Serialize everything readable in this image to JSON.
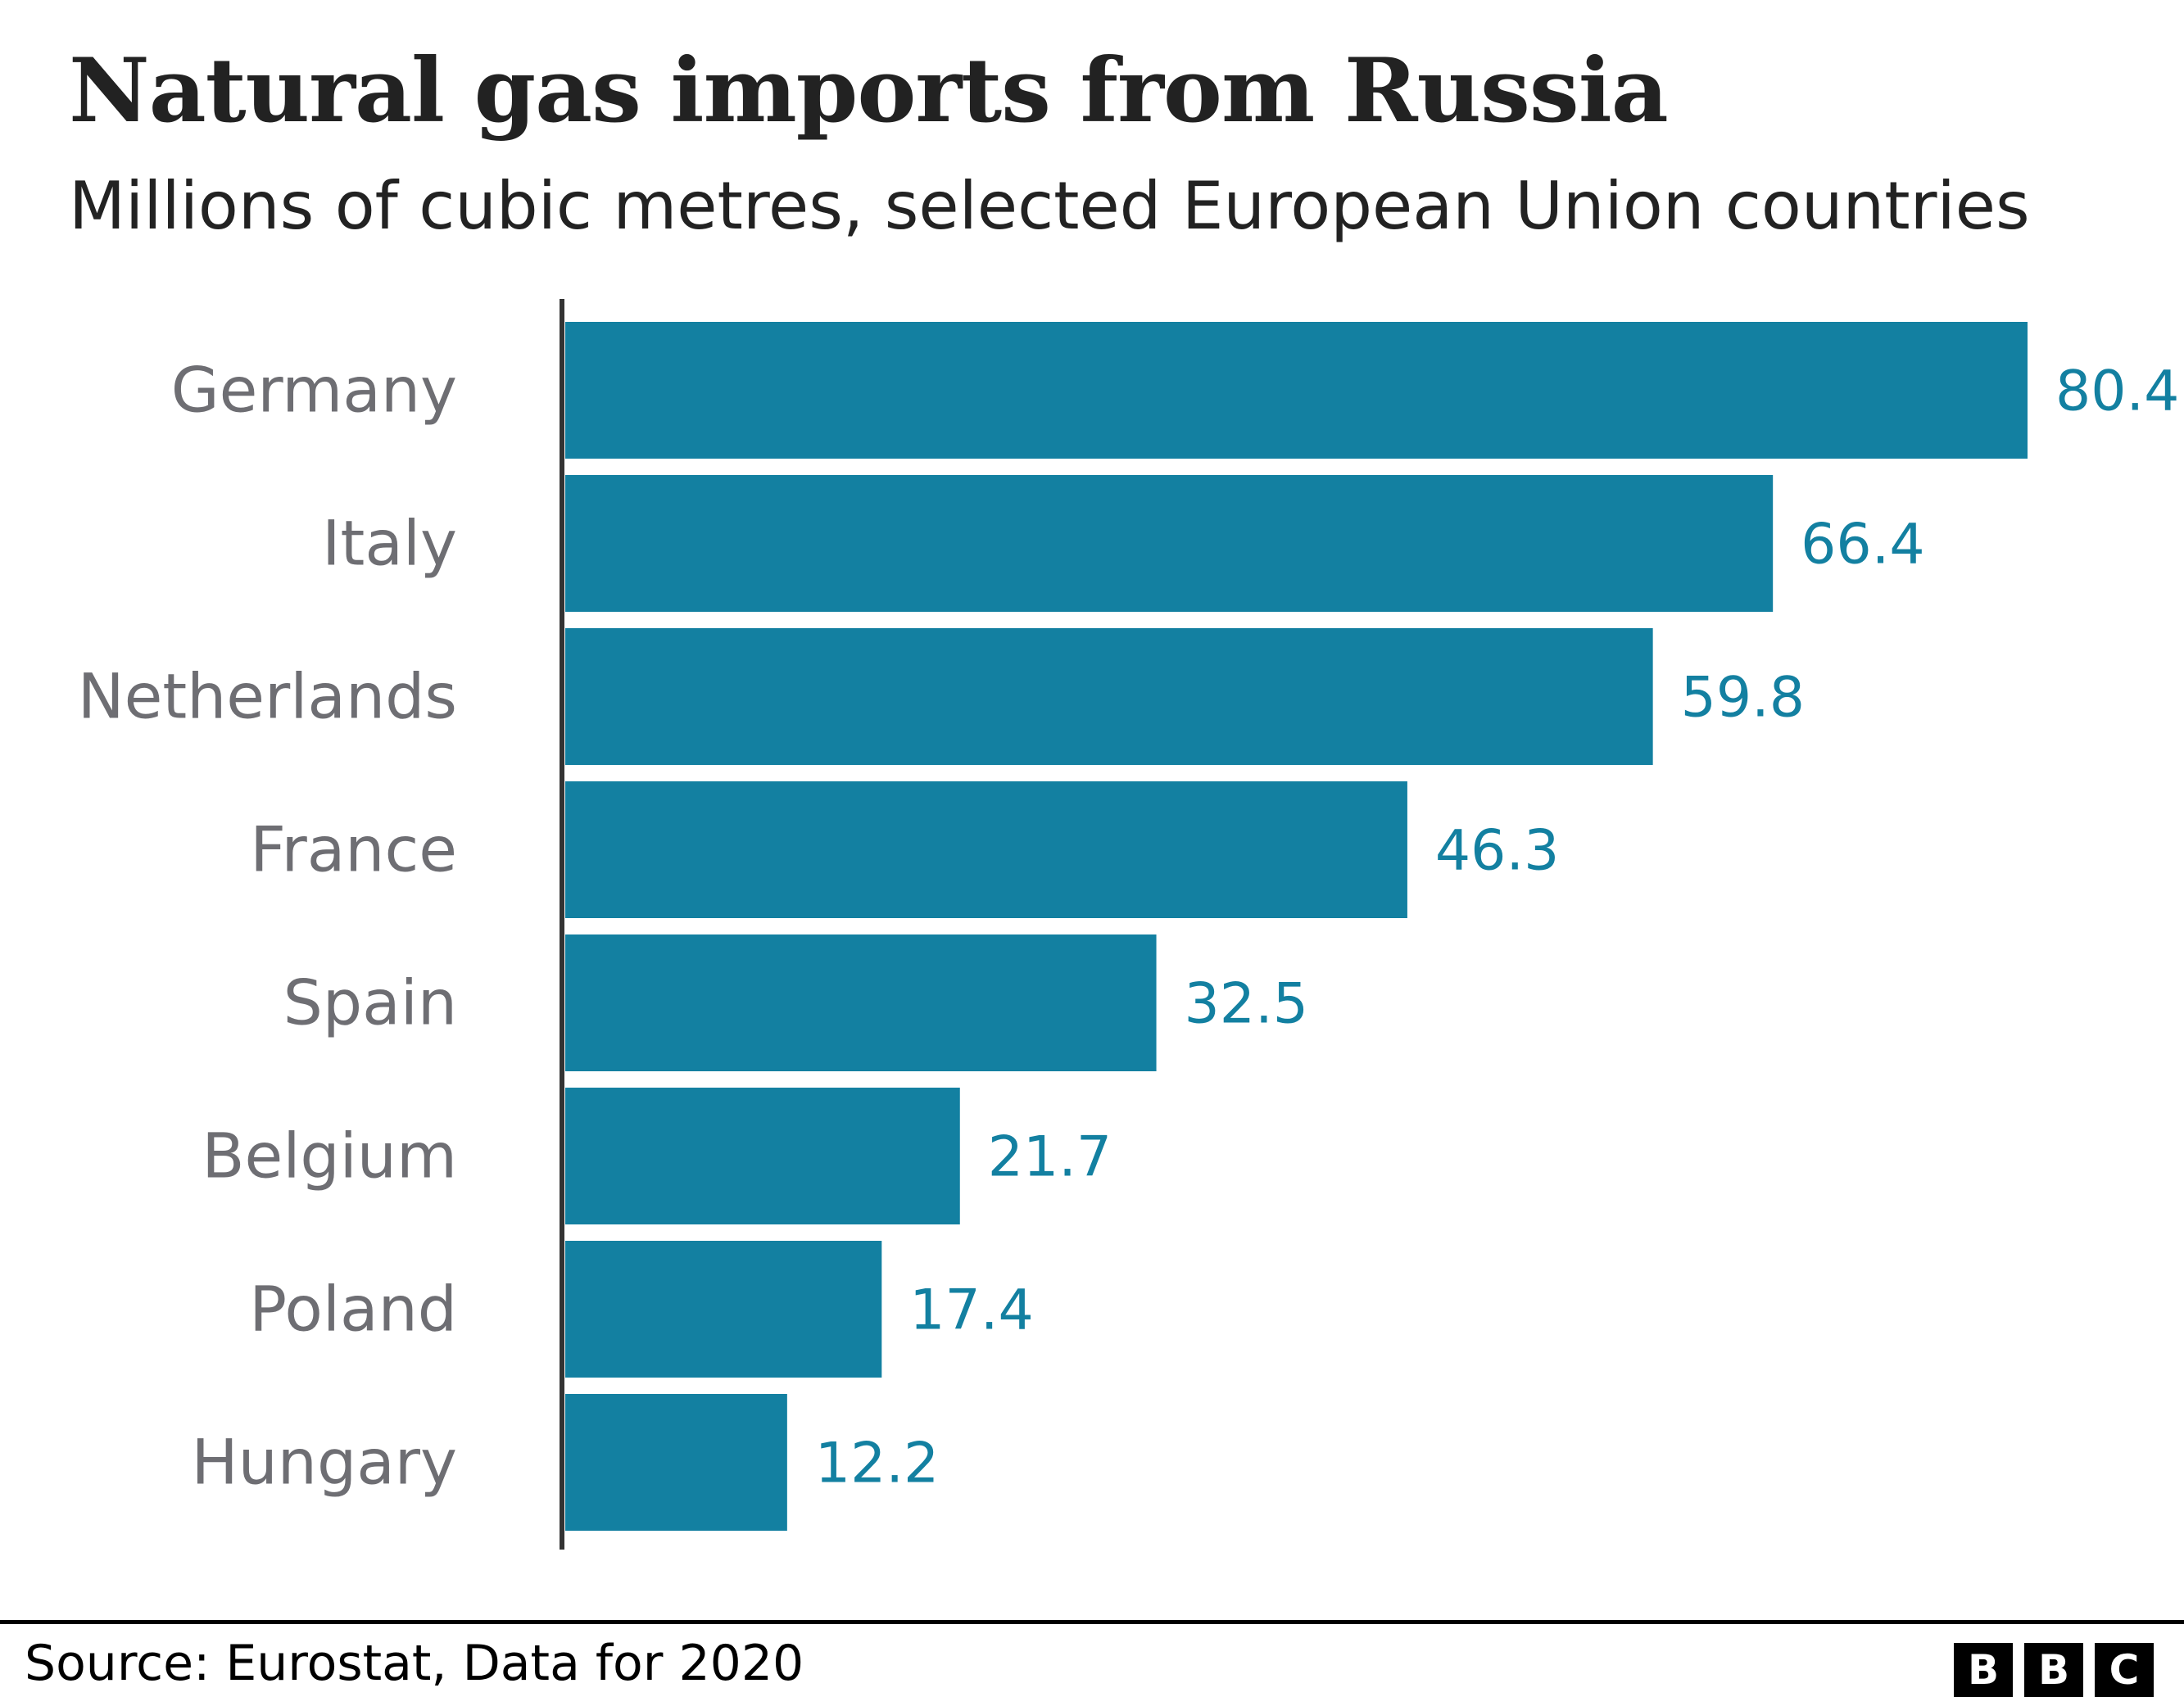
{
  "chart_data": {
    "type": "bar",
    "orientation": "horizontal",
    "title": "Natural gas imports from Russia",
    "subtitle": "Millions of cubic metres, selected European Union countries",
    "categories": [
      "Germany",
      "Italy",
      "Netherlands",
      "France",
      "Spain",
      "Belgium",
      "Poland",
      "Hungary"
    ],
    "values": [
      80.4,
      66.4,
      59.8,
      46.3,
      32.5,
      21.7,
      17.4,
      12.2
    ],
    "value_labels": [
      "80.4",
      "66.4",
      "59.8",
      "46.3",
      "32.5",
      "21.7",
      "17.4",
      "12.2"
    ],
    "xlim": [
      0,
      80.4
    ],
    "grid": false,
    "bar_color": "#1380a1",
    "label_color": "#6e6e73"
  },
  "footer": {
    "source": "Source: Eurostat, Data for 2020",
    "logo": [
      "B",
      "B",
      "C"
    ]
  }
}
